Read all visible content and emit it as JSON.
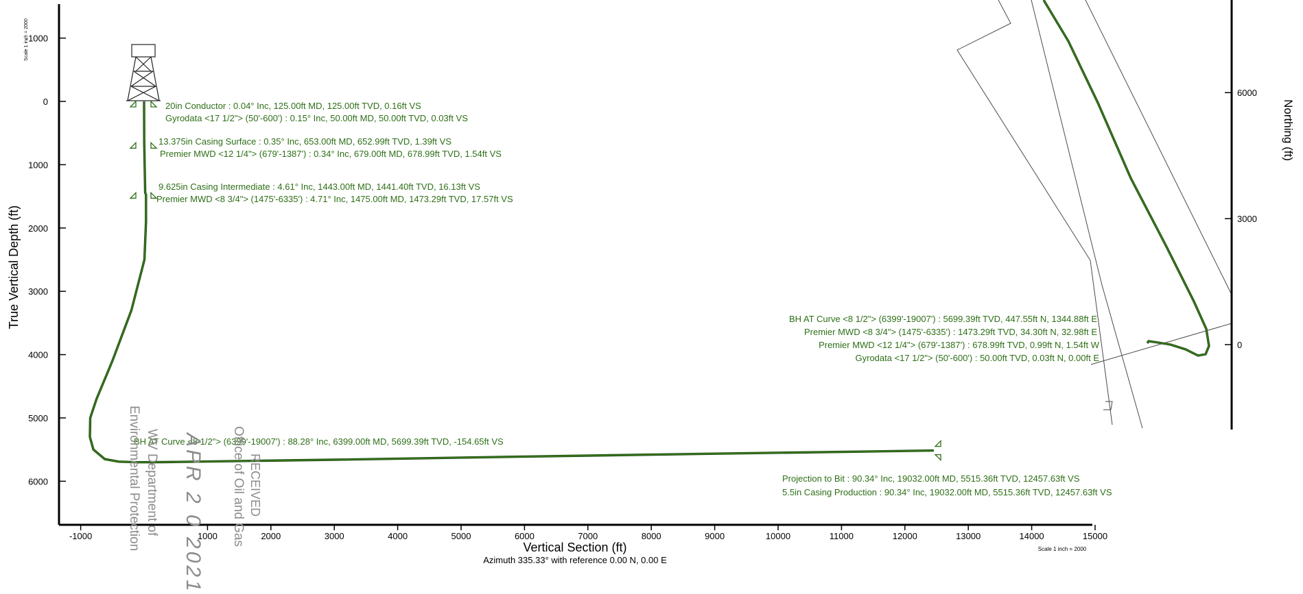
{
  "colors": {
    "well": "#3a7d1e",
    "well_dark": "#1f4a10",
    "annotation": "#2e6f17",
    "axis": "#000000",
    "lease": "#4a4a4a",
    "stamp": "#8c8c8c"
  },
  "chart_data": [
    {
      "type": "line",
      "name": "vertical-section",
      "xlabel": "Vertical Section (ft)",
      "ylabel": "True Vertical Depth (ft)",
      "subtitle": "Azimuth 335.33° with reference 0.00 N, 0.00 E",
      "scale_top": "Scale 1 inch = 2000",
      "scale_bottom": "Scale 1 inch = 2000",
      "xlim": [
        -1300,
        15000
      ],
      "ylim": [
        -1500,
        6700
      ],
      "y_inverted": true,
      "x_ticks": [
        -1000,
        1000,
        2000,
        3000,
        4000,
        5000,
        6000,
        7000,
        8000,
        9000,
        10000,
        11000,
        12000,
        13000,
        14000,
        15000
      ],
      "y_ticks": [
        -1000,
        0,
        1000,
        2000,
        3000,
        4000,
        5000,
        6000
      ],
      "series": [
        {
          "x": [
            0,
            0,
            2,
            17,
            30,
            30,
            5,
            -200,
            -500,
            -750,
            -850,
            -855,
            -800,
            -620,
            -400,
            -100,
            300,
            3000,
            6000,
            9000,
            12457
          ],
          "y": [
            0,
            125,
            650,
            1443,
            1475,
            1900,
            2500,
            3300,
            4100,
            4700,
            5000,
            5300,
            5500,
            5650,
            5690,
            5700,
            5698,
            5660,
            5610,
            5565,
            5515
          ]
        }
      ],
      "rig_icon": "drilling-rig-icon",
      "casing_markers": [
        {
          "x": 0,
          "y": 0
        },
        {
          "x": 0,
          "y": 653
        },
        {
          "x": 0,
          "y": 1443
        },
        {
          "x": 12457,
          "y": 5515
        }
      ],
      "annotations": [
        {
          "text": "20in Conductor : 0.04° Inc, 125.00ft MD, 125.00ft TVD, 0.16ft VS"
        },
        {
          "text": "Gyrodata <17 1/2\"> (50'-600') : 0.15° Inc, 50.00ft MD, 50.00ft TVD, 0.03ft VS"
        },
        {
          "text": "13.375in Casing Surface : 0.35° Inc, 653.00ft MD, 652.99ft TVD, 1.39ft VS"
        },
        {
          "text": "Premier MWD <12 1/4\"> (679'-1387') : 0.34° Inc, 679.00ft MD, 678.99ft TVD, 1.54ft VS"
        },
        {
          "text": "9.625in Casing Intermediate : 4.61° Inc, 1443.00ft MD, 1441.40ft TVD, 16.13ft VS"
        },
        {
          "text": "Premier MWD <8 3/4\"> (1475'-6335') : 4.71° Inc, 1475.00ft MD, 1473.29ft TVD, 17.57ft VS"
        },
        {
          "text": "BH AT Curve <8 1/2\"> (6399'-19007') : 88.28° Inc, 6399.00ft MD, 5699.39ft TVD, -154.65ft VS"
        },
        {
          "text": "Projection to Bit : 90.34° Inc, 19032.00ft MD, 5515.36ft TVD, 12457.63ft VS"
        },
        {
          "text": "5.5in Casing Production : 90.34° Inc, 19032.00ft MD, 5515.36ft TVD, 12457.63ft VS"
        }
      ]
    },
    {
      "type": "line",
      "name": "plan-view",
      "ylabel": "Northing (ft)",
      "ylim": [
        -2000,
        8000
      ],
      "y_ticks": [
        0,
        3000,
        6000
      ],
      "annotations": [
        {
          "text": "BH AT Curve <8 1/2\"> (6399'-19007') : 5699.39ft TVD, 447.55ft N, 1344.88ft E"
        },
        {
          "text": "Premier MWD <8 3/4\"> (1475'-6335') : 1473.29ft TVD, 34.30ft N, 32.98ft E"
        },
        {
          "text": "Premier MWD <12 1/4\"> (679'-1387') : 678.99ft TVD, 0.99ft N, 1.54ft W"
        },
        {
          "text": "Gyrodata <17 1/2\"> (50'-600') : 50.00ft TVD, 0.03ft N, 0.00ft E"
        }
      ]
    }
  ],
  "stamp": {
    "lines": [
      "RECEIVED",
      "Office of Oil and Gas",
      "APR 2 0 2021",
      "WV Department of",
      "Environmental Protection"
    ]
  }
}
